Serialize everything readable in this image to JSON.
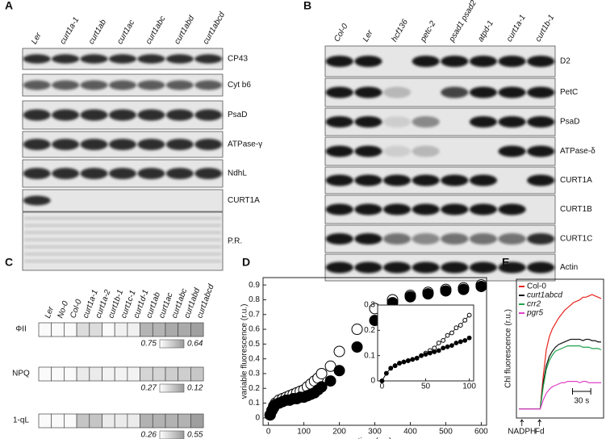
{
  "panels": {
    "a": {
      "label": "A",
      "lanes": [
        "Ler",
        "curt1a-1",
        "curt1ab",
        "curt1ac",
        "curt1abc",
        "curt1abd",
        "curt1abcd"
      ],
      "rows": [
        "CP43",
        "Cyt b6",
        "PsaD",
        "ATPase-γ",
        "NdhL",
        "CURT1A",
        "P.R."
      ]
    },
    "b": {
      "label": "B",
      "lanes": [
        "Col-0",
        "Ler",
        "hcf136",
        "petc-2",
        "psad1 psad2",
        "atpd-1",
        "curt1a-1",
        "curt1b-1"
      ],
      "rows": [
        "D2",
        "PetC",
        "PsaD",
        "ATPase-δ",
        "CURT1A",
        "CURT1B",
        "CURT1C",
        "Actin"
      ]
    },
    "c": {
      "label": "C",
      "columns": [
        "Ler",
        "No-0",
        "Col-0",
        "curt1a-1",
        "curt1a-2",
        "curt1b-1",
        "curt1c-1",
        "curt1d-1",
        "curt1ab",
        "curt1ac",
        "curt1abc",
        "curt1abd",
        "curt1abcd"
      ],
      "rows": [
        {
          "name": "ΦII",
          "values": [
            0.75,
            0.75,
            0.75,
            0.72,
            0.72,
            0.75,
            0.74,
            0.74,
            0.68,
            0.68,
            0.67,
            0.67,
            0.66
          ],
          "scale": [
            0.75,
            0.64
          ]
        },
        {
          "name": "NPQ",
          "values": [
            0.27,
            0.27,
            0.27,
            0.25,
            0.25,
            0.26,
            0.26,
            0.26,
            0.22,
            0.22,
            0.21,
            0.21,
            0.2
          ],
          "scale": [
            0.27,
            0.12
          ]
        },
        {
          "name": "1-qL",
          "values": [
            0.26,
            0.26,
            0.26,
            0.4,
            0.4,
            0.3,
            0.3,
            0.3,
            0.45,
            0.45,
            0.45,
            0.45,
            0.5
          ],
          "scale": [
            0.26,
            0.55
          ]
        }
      ]
    }
  },
  "chart_data": [
    {
      "type": "scatter",
      "label": "D",
      "xlabel": "time (ms)",
      "ylabel": "variable fluorescence (r.u.)",
      "xlim": [
        -15,
        615
      ],
      "ylim": [
        -0.05,
        0.95
      ],
      "xticks": [
        0,
        100,
        200,
        300,
        400,
        500,
        600
      ],
      "yticks": [
        0,
        0.1,
        0.2,
        0.3,
        0.4,
        0.5,
        0.6,
        0.7,
        0.8,
        0.9
      ],
      "x": [
        5,
        10,
        15,
        20,
        30,
        40,
        50,
        60,
        70,
        80,
        90,
        100,
        110,
        120,
        130,
        140,
        150,
        175,
        200,
        250,
        300,
        350,
        400,
        450,
        500,
        550,
        600
      ],
      "series": [
        {
          "color": "#ffffff",
          "values": [
            0.02,
            0.05,
            0.08,
            0.1,
            0.12,
            0.13,
            0.14,
            0.15,
            0.16,
            0.17,
            0.18,
            0.19,
            0.21,
            0.23,
            0.25,
            0.27,
            0.3,
            0.35,
            0.45,
            0.6,
            0.74,
            0.8,
            0.83,
            0.85,
            0.87,
            0.88,
            0.9
          ]
        },
        {
          "color": "#000000",
          "values": [
            0.02,
            0.05,
            0.07,
            0.09,
            0.1,
            0.11,
            0.12,
            0.12,
            0.13,
            0.13,
            0.14,
            0.14,
            0.15,
            0.16,
            0.17,
            0.19,
            0.21,
            0.25,
            0.32,
            0.48,
            0.66,
            0.78,
            0.82,
            0.84,
            0.86,
            0.87,
            0.89
          ]
        }
      ],
      "inset": {
        "xlim": [
          -5,
          105
        ],
        "ylim": [
          0,
          0.3
        ],
        "xticks": [
          0,
          50,
          100
        ],
        "yticks": [
          0,
          0.1,
          0.2,
          0.3
        ],
        "x": [
          0,
          5,
          10,
          15,
          20,
          25,
          30,
          35,
          40,
          45,
          50,
          55,
          60,
          65,
          70,
          75,
          80,
          85,
          90,
          95,
          100
        ],
        "series": [
          {
            "color": "#ffffff",
            "values": [
              0,
              0.03,
              0.05,
              0.06,
              0.07,
              0.075,
              0.08,
              0.085,
              0.09,
              0.1,
              0.11,
              0.12,
              0.13,
              0.15,
              0.16,
              0.18,
              0.19,
              0.21,
              0.22,
              0.24,
              0.26
            ]
          },
          {
            "color": "#000000",
            "values": [
              0,
              0.03,
              0.05,
              0.06,
              0.07,
              0.075,
              0.08,
              0.085,
              0.09,
              0.1,
              0.105,
              0.11,
              0.115,
              0.12,
              0.13,
              0.135,
              0.14,
              0.15,
              0.155,
              0.16,
              0.17
            ]
          }
        ]
      }
    },
    {
      "type": "line",
      "label": "E",
      "ylabel": "Chl fluorescence (r.u.)",
      "xlim": [
        0,
        135
      ],
      "ylim": [
        0,
        1
      ],
      "x": [
        0,
        5,
        10,
        15,
        20,
        25,
        30,
        35,
        40,
        45,
        50,
        55,
        60,
        65,
        70,
        75,
        80,
        85,
        90,
        95,
        100,
        105,
        110,
        115,
        120,
        125,
        130,
        135
      ],
      "series": [
        {
          "name": "Col-0",
          "color": "#e8251f",
          "values": [
            0.05,
            0.05,
            0.05,
            0.05,
            0.05,
            0.05,
            0.05,
            0.05,
            0.3,
            0.5,
            0.6,
            0.66,
            0.7,
            0.74,
            0.77,
            0.8,
            0.82,
            0.84,
            0.86,
            0.87,
            0.88,
            0.9,
            0.9,
            0.91,
            0.92,
            0.91,
            0.9,
            0.89
          ]
        },
        {
          "name": "curt1abcd",
          "color": "#111111",
          "values": [
            0.05,
            0.05,
            0.05,
            0.05,
            0.05,
            0.05,
            0.05,
            0.05,
            0.25,
            0.38,
            0.45,
            0.49,
            0.52,
            0.54,
            0.55,
            0.56,
            0.57,
            0.58,
            0.58,
            0.58,
            0.58,
            0.57,
            0.58,
            0.58,
            0.57,
            0.57,
            0.56,
            0.56
          ]
        },
        {
          "name": "crr2",
          "color": "#1fa34a",
          "values": [
            0.05,
            0.05,
            0.05,
            0.05,
            0.05,
            0.05,
            0.05,
            0.05,
            0.22,
            0.35,
            0.42,
            0.46,
            0.49,
            0.5,
            0.51,
            0.52,
            0.53,
            0.53,
            0.53,
            0.53,
            0.53,
            0.52,
            0.52,
            0.52,
            0.51,
            0.51,
            0.51,
            0.5
          ]
        },
        {
          "name": "pgr5",
          "color": "#e040c8",
          "values": [
            0.05,
            0.05,
            0.05,
            0.05,
            0.05,
            0.05,
            0.05,
            0.05,
            0.12,
            0.17,
            0.2,
            0.22,
            0.23,
            0.24,
            0.25,
            0.25,
            0.26,
            0.26,
            0.26,
            0.26,
            0.25,
            0.26,
            0.26,
            0.25,
            0.25,
            0.25,
            0.25,
            0.25
          ]
        }
      ],
      "annotations": [
        {
          "text": "NADPH",
          "x": 5
        },
        {
          "text": "Fd",
          "x": 34
        }
      ],
      "scalebar": {
        "label": "30 s",
        "value": 30
      }
    }
  ]
}
